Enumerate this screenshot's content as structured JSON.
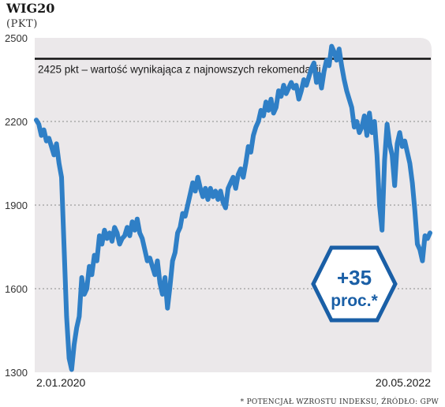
{
  "chart_data": {
    "type": "line",
    "title": "WIG20",
    "unit": "(PKT)",
    "ylim": [
      1300,
      2500
    ],
    "yticks": [
      "2500",
      "2200",
      "1900",
      "1600",
      "1300"
    ],
    "gridlines": [
      2200,
      1900,
      1600
    ],
    "reference_line": {
      "value": 2425,
      "label": "2425 pkt – wartość wynikająca z najnowszych rekomendacji"
    },
    "start_label": "2.01.2020",
    "end_label": "20.05.2022",
    "badge": {
      "line1": "+35",
      "line2": "proc.*"
    },
    "source_note": "* POTENCJAŁ WZROSTU INDEKSU, ŹRÓDŁO: GPW",
    "series": [
      {
        "values": [
          2205,
          2190,
          2150,
          2170,
          2130,
          2140,
          2110,
          2080,
          2120,
          2050,
          2000,
          1750,
          1500,
          1350,
          1310,
          1400,
          1460,
          1500,
          1640,
          1580,
          1600,
          1680,
          1650,
          1720,
          1700,
          1790,
          1760,
          1810,
          1780,
          1800,
          1770,
          1820,
          1800,
          1760,
          1780,
          1790,
          1820,
          1790,
          1840,
          1810,
          1850,
          1800,
          1780,
          1740,
          1700,
          1710,
          1680,
          1650,
          1700,
          1620,
          1580,
          1640,
          1530,
          1610,
          1700,
          1730,
          1800,
          1820,
          1870,
          1860,
          1900,
          1940,
          1980,
          1950,
          2000,
          1960,
          1930,
          1960,
          1920,
          1960,
          1930,
          1950,
          1920,
          1950,
          1910,
          1890,
          1960,
          1980,
          2000,
          1960,
          2010,
          2030,
          2000,
          2050,
          2110,
          2090,
          2150,
          2180,
          2200,
          2240,
          2220,
          2270,
          2240,
          2280,
          2230,
          2250,
          2310,
          2290,
          2330,
          2300,
          2320,
          2340,
          2320,
          2330,
          2280,
          2310,
          2350,
          2330,
          2360,
          2390,
          2410,
          2340,
          2370,
          2320,
          2380,
          2420,
          2400,
          2470,
          2450,
          2420,
          2460,
          2400,
          2350,
          2310,
          2280,
          2250,
          2180,
          2200,
          2160,
          2180,
          2220,
          2150,
          2230,
          2160,
          2200,
          2080,
          1900,
          1810,
          2060,
          2190,
          2120,
          2080,
          1970,
          2120,
          2160,
          2110,
          2130,
          2090,
          2050,
          1980,
          1880,
          1760,
          1740,
          1700,
          1790,
          1780,
          1800
        ]
      }
    ]
  }
}
